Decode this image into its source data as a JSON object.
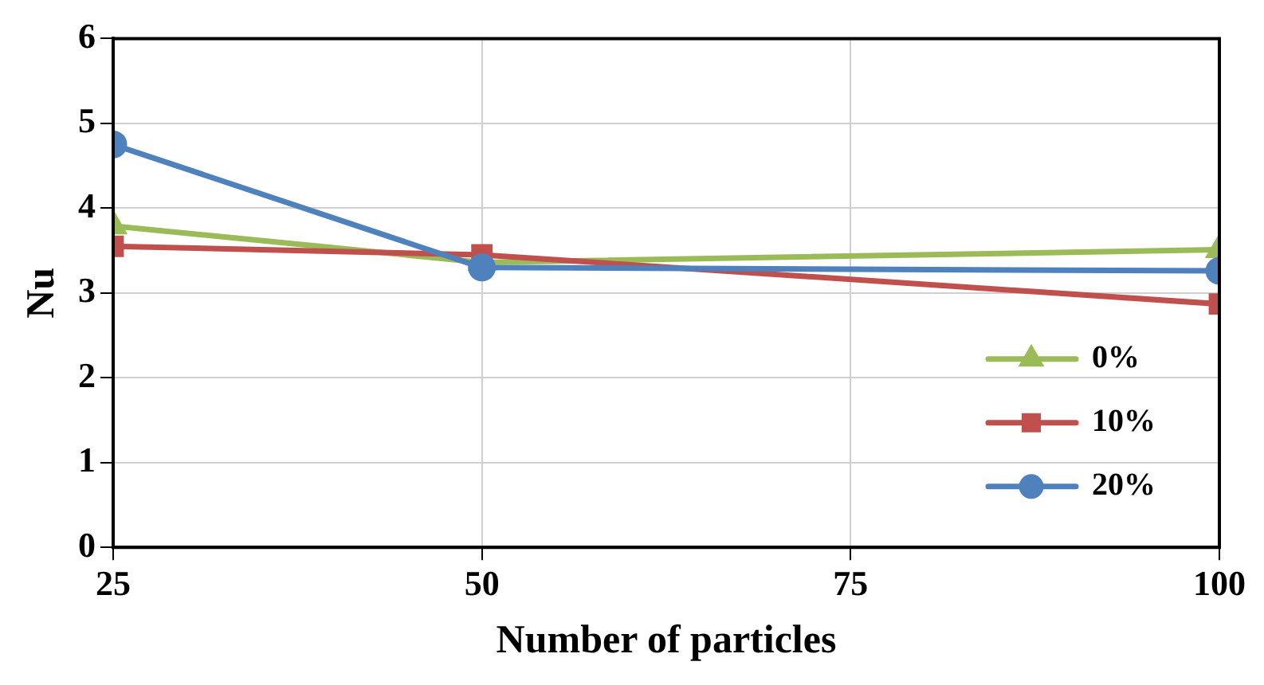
{
  "chart_data": {
    "type": "line",
    "xlabel": "Number of particles",
    "ylabel": "Nu",
    "x": [
      25,
      50,
      100
    ],
    "series": [
      {
        "name": "0%",
        "color": "#9bbb59",
        "marker": "triangle",
        "values": [
          3.79,
          3.36,
          3.51
        ]
      },
      {
        "name": "10%",
        "color": "#c0504d",
        "marker": "square",
        "values": [
          3.55,
          3.45,
          2.87
        ]
      },
      {
        "name": "20%",
        "color": "#4f81bd",
        "marker": "circle",
        "values": [
          4.75,
          3.3,
          3.26
        ]
      }
    ],
    "xlim": [
      25,
      100
    ],
    "xticks": [
      25,
      50,
      75,
      100
    ],
    "ylim": [
      0,
      6
    ],
    "yticks": [
      0,
      1,
      2,
      3,
      4,
      5,
      6
    ],
    "grid": true,
    "legend": "right",
    "line_style": "solid"
  }
}
